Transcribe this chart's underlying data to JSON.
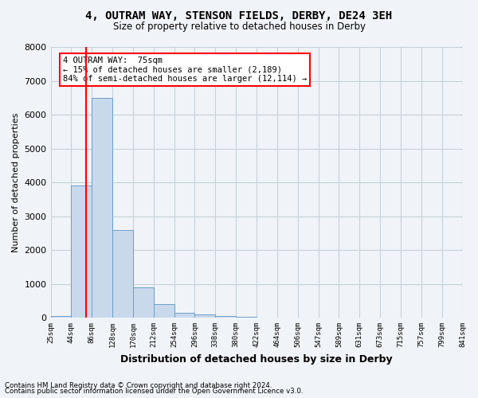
{
  "title_line1": "4, OUTRAM WAY, STENSON FIELDS, DERBY, DE24 3EH",
  "title_line2": "Size of property relative to detached houses in Derby",
  "xlabel": "Distribution of detached houses by size in Derby",
  "ylabel": "Number of detached properties",
  "bin_labels": [
    "25sqm",
    "44sqm",
    "86sqm",
    "128sqm",
    "170sqm",
    "212sqm",
    "254sqm",
    "296sqm",
    "338sqm",
    "380sqm",
    "422sqm",
    "464sqm",
    "506sqm",
    "547sqm",
    "589sqm",
    "631sqm",
    "673sqm",
    "715sqm",
    "757sqm",
    "799sqm",
    "841sqm"
  ],
  "bin_edges": [
    25,
    44,
    86,
    128,
    170,
    212,
    254,
    296,
    338,
    380,
    422,
    464,
    506,
    547,
    589,
    631,
    673,
    715,
    757,
    799,
    841
  ],
  "bar_heights": [
    50,
    3900,
    6500,
    2600,
    900,
    400,
    150,
    100,
    50,
    30,
    10,
    5,
    3,
    2,
    1,
    1,
    0,
    0,
    0,
    0
  ],
  "bar_color": "#c9d9ec",
  "bar_edgecolor": "#6b9ec8",
  "grid_color": "#c8d0d8",
  "property_sqm": 75,
  "property_line_color": "red",
  "annotation_line1": "4 OUTRAM WAY:  75sqm",
  "annotation_line2": "← 15% of detached houses are smaller (2,189)",
  "annotation_line3": "84% of semi-detached houses are larger (12,114) →",
  "annotation_box_color": "white",
  "annotation_box_edgecolor": "red",
  "ylim": [
    0,
    8000
  ],
  "yticks": [
    0,
    1000,
    2000,
    3000,
    4000,
    5000,
    6000,
    7000,
    8000
  ],
  "footnote1": "Contains HM Land Registry data © Crown copyright and database right 2024.",
  "footnote2": "Contains public sector information licensed under the Open Government Licence v3.0.",
  "background_color": "#f0f4f8"
}
